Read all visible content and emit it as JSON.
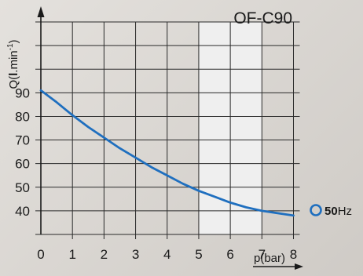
{
  "chart_data": {
    "type": "line",
    "title": "OF-C90",
    "xlabel": "p(bar)",
    "ylabel_main": "Q(",
    "ylabel_bold": "l",
    "ylabel_rest": ".min",
    "ylabel_sup": "-1",
    "ylabel_close": ")",
    "xlim": [
      0,
      8
    ],
    "ylim": [
      30,
      120
    ],
    "x_ticks": [
      0,
      1,
      2,
      3,
      4,
      5,
      6,
      7,
      8
    ],
    "y_ticks": [
      40,
      50,
      60,
      70,
      80,
      90
    ],
    "x_tick_labels": [
      "0",
      "1",
      "2",
      "3",
      "4",
      "5",
      "6",
      "7",
      "8"
    ],
    "y_tick_labels": [
      "40",
      "50",
      "60",
      "70",
      "80",
      "90"
    ],
    "highlight_band": [
      5,
      7
    ],
    "grid": true,
    "legend_position": "right",
    "series": [
      {
        "name_bold": "50",
        "name_rest": "Hz",
        "color": "#1f6fbf",
        "x": [
          0,
          0.5,
          1,
          1.5,
          2,
          2.5,
          3,
          3.5,
          4,
          4.5,
          5,
          5.5,
          6,
          6.5,
          7,
          7.5,
          8
        ],
        "y": [
          91,
          86,
          80.5,
          75.5,
          71,
          66.5,
          62.5,
          58.5,
          55,
          51.5,
          48.5,
          46,
          43.5,
          41.5,
          40,
          39,
          38
        ]
      }
    ]
  },
  "colors": {
    "grid": "#2a2a2a",
    "band": "#efefef",
    "line": "#1f6fbf"
  }
}
